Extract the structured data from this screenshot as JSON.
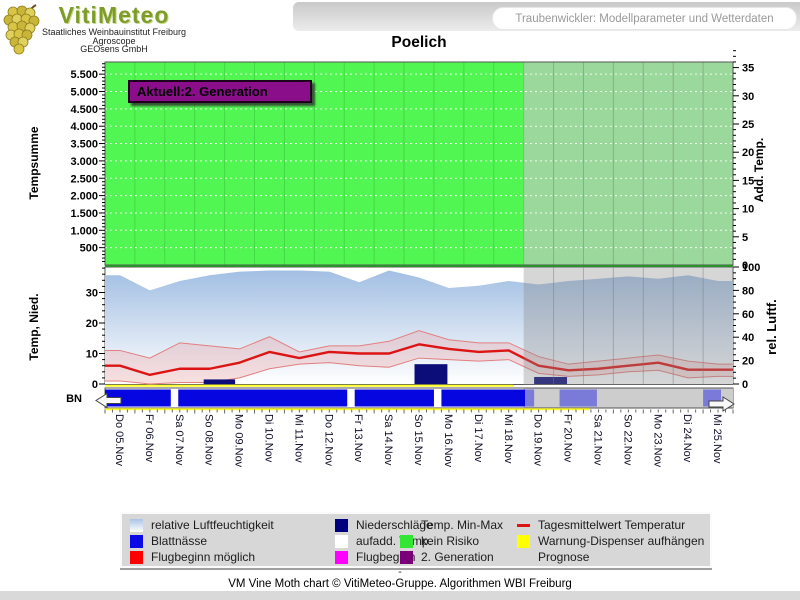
{
  "header": {
    "logo": {
      "brand": "VitiMeteo",
      "sub1": "Staatliches Weinbauinstitut Freiburg",
      "sub2": "Agroscope",
      "sub3": "GEOsens GmbH"
    },
    "link_button": "Traubenwickler: Modellparameter und Wetterdaten"
  },
  "title": "Poelich",
  "status_label": "Aktuell:2. Generation",
  "chart_data": {
    "type": "composite",
    "title": "Poelich",
    "legend_position": "bottom",
    "dates": [
      "Do 05.Nov",
      "Fr 06.Nov",
      "Sa 07.Nov",
      "So 08.Nov",
      "Mo 09.Nov",
      "Di 10.Nov",
      "Mi 11.Nov",
      "Do 12.Nov",
      "Fr 13.Nov",
      "Sa 14.Nov",
      "So 15.Nov",
      "Mo 16.Nov",
      "Di 17.Nov",
      "Mi 18.Nov",
      "Do 19.Nov",
      "Fr 20.Nov",
      "Sa 21.Nov",
      "So 22.Nov",
      "Mo 23.Nov",
      "Di 24.Nov",
      "Mi 25.Nov"
    ],
    "forecast_start_index": 14,
    "top_panel": {
      "left_axis_label": "Tempsumme",
      "left_ticks": [
        "500",
        "1.000",
        "1.500",
        "2.000",
        "2.500",
        "3.000",
        "3.500",
        "4.000",
        "4.500",
        "5.000",
        "5.500"
      ],
      "left_axis_range": [
        0,
        5800
      ],
      "right_axis_label": "Add. Temp.",
      "right_ticks": [
        0,
        5,
        10,
        15,
        20,
        25,
        30,
        35
      ],
      "right_axis_range": [
        0,
        38
      ],
      "risk_state": "kein Risiko",
      "status_label": "Aktuell:2. Generation"
    },
    "mid_panel": {
      "left_axis_label": "Temp, Nied.",
      "left_ticks": [
        0,
        10,
        20,
        30
      ],
      "left_axis_range": [
        0,
        38
      ],
      "right_axis_label": "rel. Luftf.",
      "right_ticks": [
        0,
        20,
        40,
        60,
        80,
        100
      ],
      "right_axis_range": [
        0,
        100
      ],
      "bn_label": "BN",
      "humidity_percent": [
        93,
        80,
        88,
        93,
        96,
        97,
        97,
        96,
        87,
        97,
        91,
        82,
        84,
        88,
        85,
        88,
        90,
        92,
        90,
        93,
        88
      ],
      "temp_mean": [
        6,
        3,
        5,
        5,
        7,
        10.5,
        8.5,
        10.5,
        10,
        10,
        13,
        11.5,
        10.5,
        11,
        6,
        4.5,
        5,
        6,
        7,
        4.7,
        4.7
      ],
      "temp_min": [
        1,
        0,
        0.5,
        0.5,
        2,
        5,
        6.5,
        7,
        6,
        5.5,
        8.5,
        8,
        7.5,
        8,
        3.5,
        2.5,
        3,
        4,
        4.5,
        2,
        2.5
      ],
      "temp_max": [
        11,
        8.5,
        13.5,
        12.5,
        11.5,
        15.5,
        10.5,
        12.5,
        12.5,
        14,
        17.5,
        14.5,
        13.5,
        13.5,
        9,
        6.5,
        7.5,
        8.5,
        9.5,
        7.5,
        6.5
      ],
      "precipitation_bars": [
        {
          "from_day": 3.3,
          "to_day": 4.35,
          "value": 1.5
        },
        {
          "from_day": 10.35,
          "to_day": 11.45,
          "value": 6.5
        },
        {
          "from_day": 14.35,
          "to_day": 15.45,
          "value": 2.3,
          "forecast": true
        }
      ],
      "leaf_wetness_observed_days": [
        [
          0,
          2.2
        ],
        [
          2.45,
          8.1
        ],
        [
          8.35,
          11.0
        ],
        [
          11.25,
          14.05
        ]
      ],
      "leaf_wetness_forecast_days": [
        [
          14.05,
          14.35
        ],
        [
          15.2,
          16.45
        ],
        [
          20.0,
          20.6
        ]
      ],
      "warning_line_a_days": [
        0,
        13.65
      ],
      "warning_line_b_days": [
        0,
        16.2
      ]
    }
  },
  "legend": {
    "columns": [
      {
        "items": [
          {
            "swatch": "humidity-gradient",
            "label": "relative Luftfeuchtigkeit"
          },
          {
            "swatch": "#0a0ae6",
            "label": "Blattnässe"
          },
          {
            "swatch": "#fe0000",
            "label": "Flugbeginn möglich"
          }
        ]
      },
      {
        "items": [
          {
            "swatch": "#00007e",
            "label": "Niederschläge"
          },
          {
            "swatch": "#ffffff",
            "label": "aufadd. Temp."
          },
          {
            "swatch": "#ff00ff",
            "label": "Flugbeginn"
          }
        ]
      },
      {
        "items": [
          {
            "swatch": "none",
            "label": "Temp. Min-Max"
          },
          {
            "swatch": "#33e633",
            "label": "kein Risiko"
          },
          {
            "swatch": "#7a0078",
            "label": "2. Generation"
          }
        ]
      },
      {
        "items": [
          {
            "swatch": "red-line",
            "label": "Tagesmittelwert Temperatur"
          },
          {
            "swatch": "#ffff00",
            "label": "Warnung-Dispenser aufhängen"
          },
          {
            "swatch": "none",
            "label": "Prognose"
          }
        ]
      }
    ]
  },
  "footer": {
    "dash": "-",
    "caption": "VM Vine Moth chart © VitiMeteo-Gruppe. Algorithmen WBI Freiburg"
  },
  "colors": {
    "risk_green": "#52f652",
    "forecast_green": "#9bd89b",
    "status_purple": "#8a0d8a",
    "mean_red": "#dc1414",
    "band_pink": "rgba(238,160,160,0.33)",
    "band_edge": "#e27f7f",
    "precip_navy": "#0d0d7a",
    "bn_blue": "#0606e0",
    "bn_forecast_blue": "#7a7ad9",
    "warning_yellow": "#ffff2e",
    "humidity_blue_top": "#9fbde2"
  }
}
